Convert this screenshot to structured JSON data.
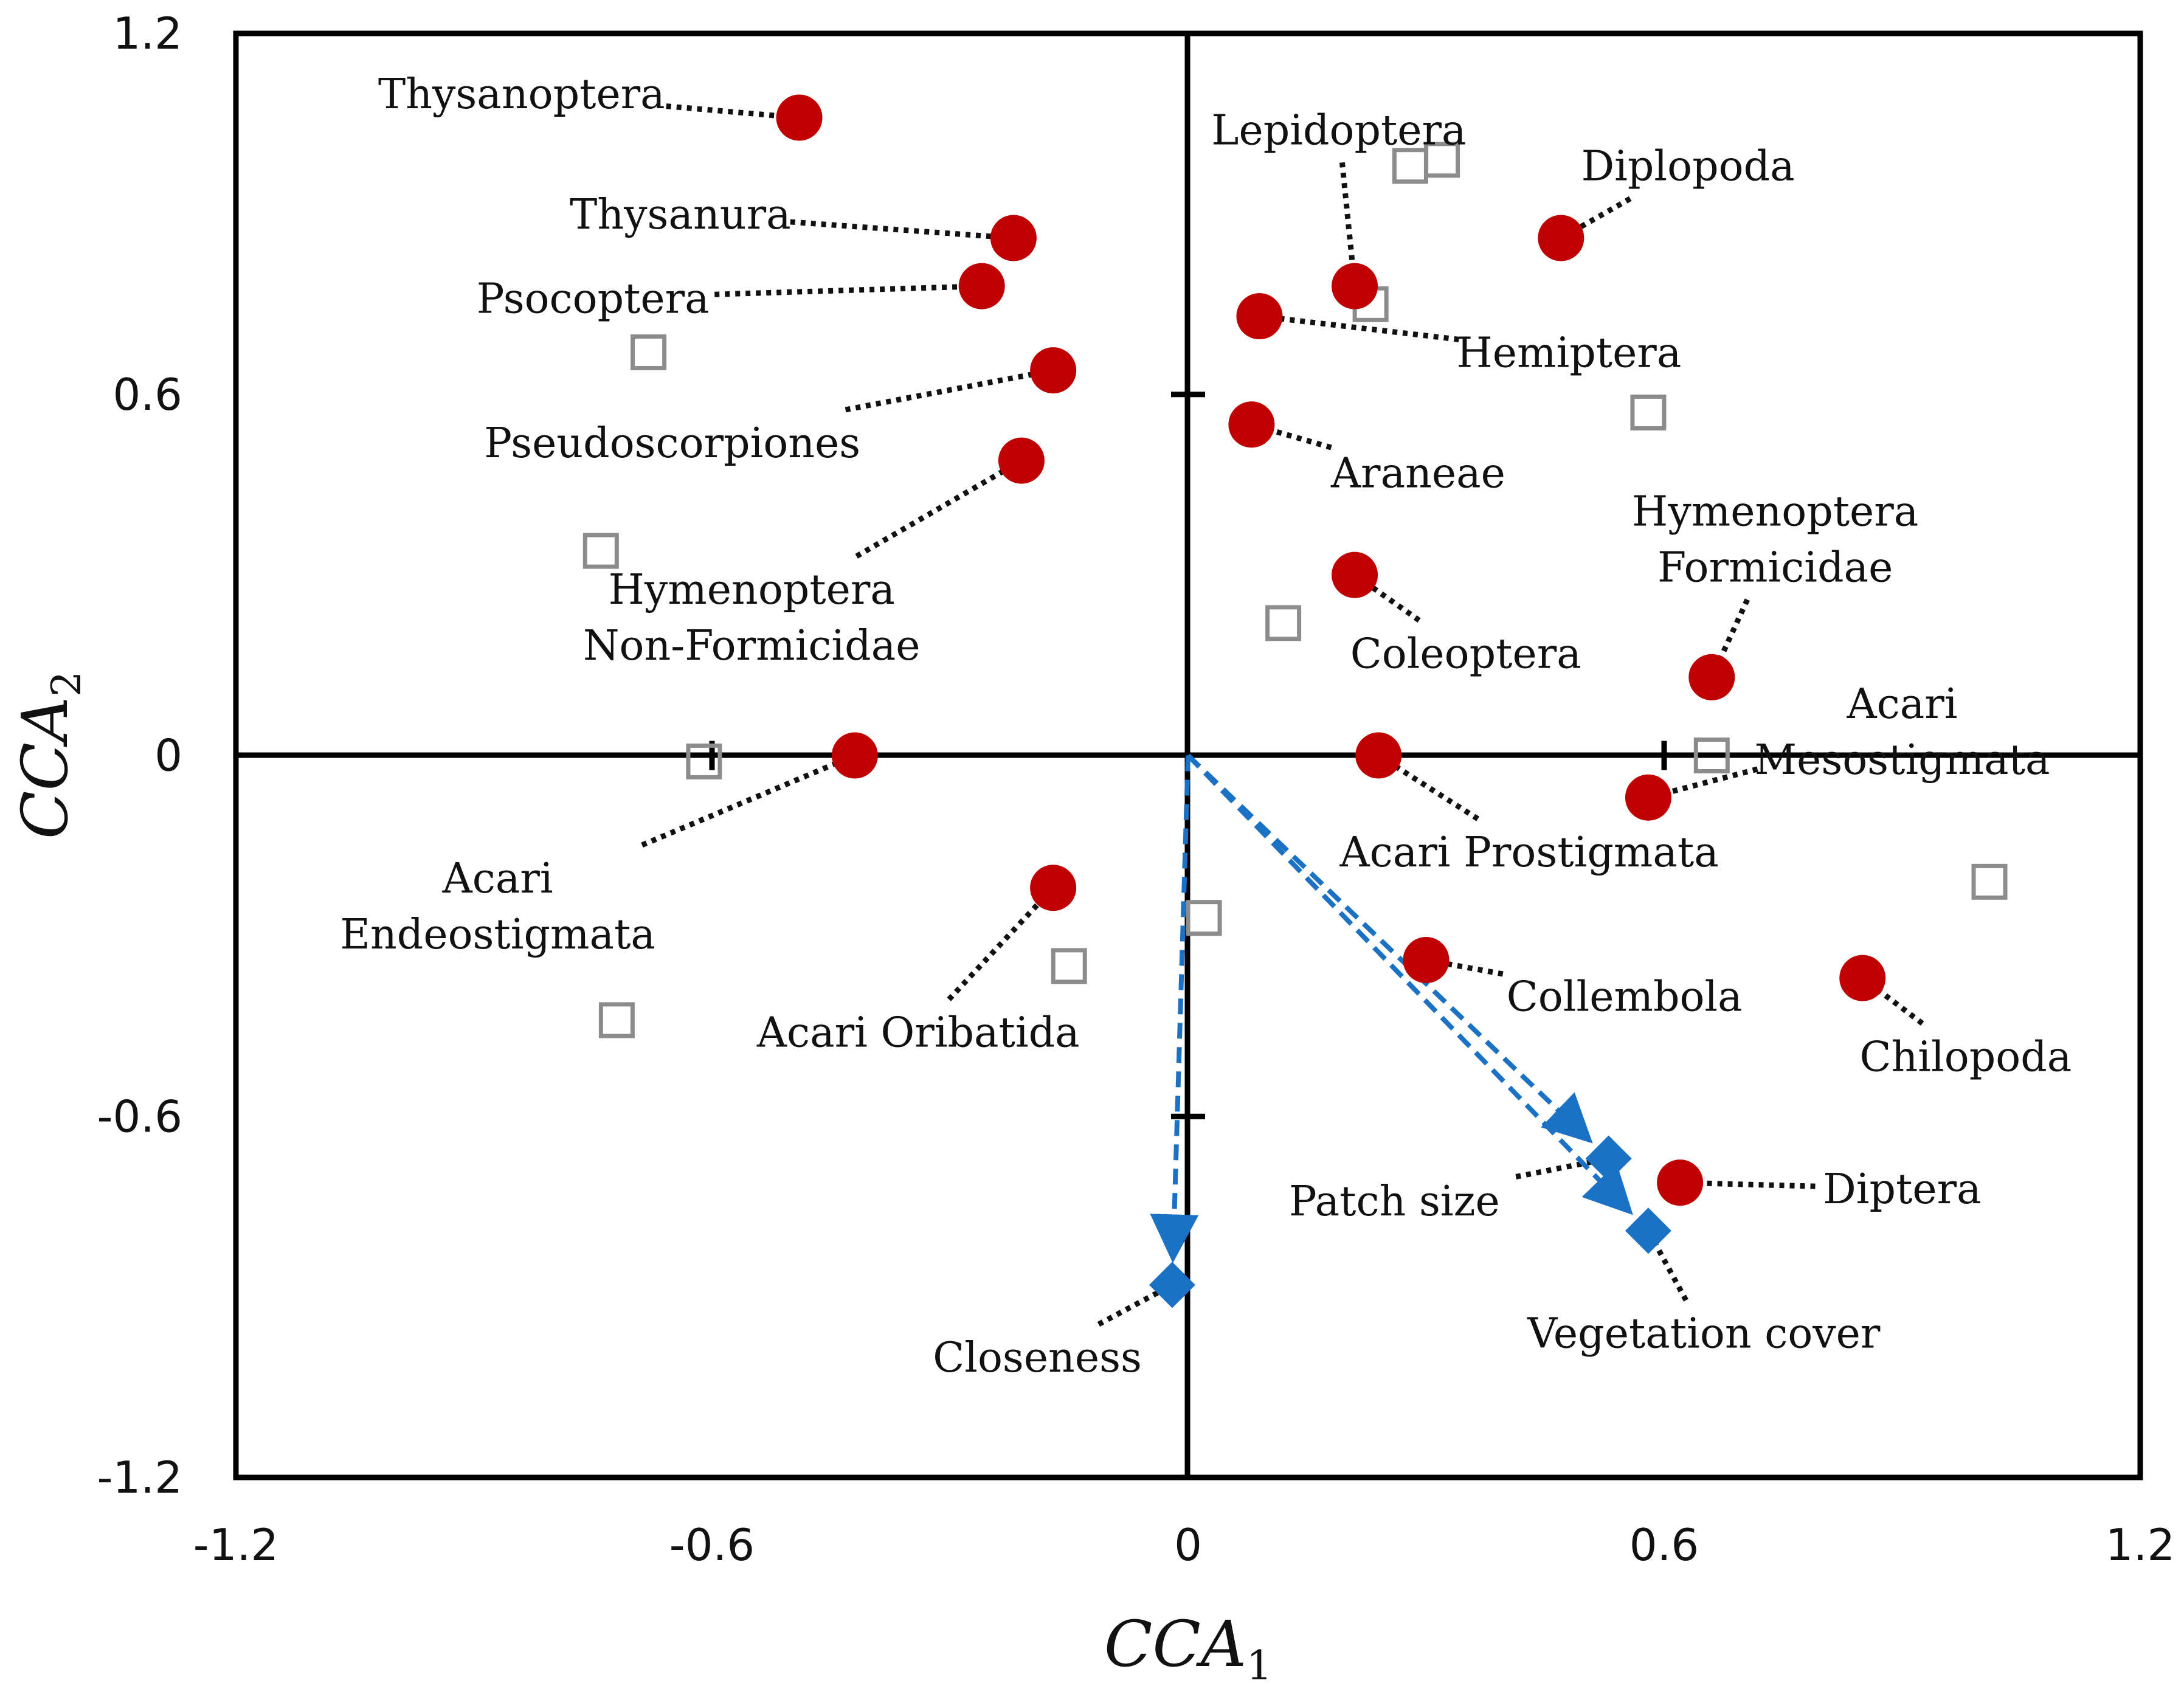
{
  "chart_data": {
    "type": "scatter",
    "title": "",
    "xlabel": {
      "main": "CCA",
      "sub": "1"
    },
    "ylabel": {
      "main": "CCA",
      "sub": "2"
    },
    "xlim": [
      -1.2,
      1.2
    ],
    "ylim": [
      -1.2,
      1.2
    ],
    "x_ticks": [
      "-1.2",
      "-0.6",
      "0",
      "0.6",
      "1.2"
    ],
    "y_ticks": [
      "1.2",
      "0.6",
      "0",
      "-0.6",
      "-1.2"
    ],
    "grid": false,
    "colors": {
      "taxa": "#c00000",
      "sites": "#8c8c8c",
      "variables": "#1b72c4",
      "leader": "#111111",
      "axis": "#000000"
    },
    "taxa": [
      {
        "label": [
          "Thysanoptera"
        ],
        "x": -0.49,
        "y": 1.06,
        "lx": -0.84,
        "ly": 1.1
      },
      {
        "label": [
          "Thysanura"
        ],
        "x": -0.22,
        "y": 0.86,
        "lx": -0.64,
        "ly": 0.9
      },
      {
        "label": [
          "Psocoptera"
        ],
        "x": -0.26,
        "y": 0.78,
        "lx": -0.75,
        "ly": 0.76
      },
      {
        "label": [
          "Pseudoscorpiones"
        ],
        "x": -0.17,
        "y": 0.64,
        "lx": -0.65,
        "ly": 0.52
      },
      {
        "label": [
          "Hymenoptera",
          "Non-Formicidae"
        ],
        "x": -0.21,
        "y": 0.49,
        "lx": -0.55,
        "ly": 0.23
      },
      {
        "label": [
          "Acari",
          "Endeostigmata"
        ],
        "x": -0.42,
        "y": 0.0,
        "lx": -0.87,
        "ly": -0.25
      },
      {
        "label": [
          "Acari Oribatida"
        ],
        "x": -0.17,
        "y": -0.22,
        "lx": -0.34,
        "ly": -0.46
      },
      {
        "label": [
          "Lepidoptera"
        ],
        "x": 0.21,
        "y": 0.78,
        "lx": 0.19,
        "ly": 1.04
      },
      {
        "label": [
          "Diplopoda"
        ],
        "x": 0.47,
        "y": 0.86,
        "lx": 0.63,
        "ly": 0.98
      },
      {
        "label": [
          "Hemiptera"
        ],
        "x": 0.09,
        "y": 0.73,
        "lx": 0.48,
        "ly": 0.67
      },
      {
        "label": [
          "Araneae"
        ],
        "x": 0.08,
        "y": 0.55,
        "lx": 0.29,
        "ly": 0.47
      },
      {
        "label": [
          "Coleoptera"
        ],
        "x": 0.21,
        "y": 0.3,
        "lx": 0.35,
        "ly": 0.17
      },
      {
        "label": [
          "Hymenoptera",
          "Formicidae"
        ],
        "x": 0.66,
        "y": 0.13,
        "lx": 0.74,
        "ly": 0.36
      },
      {
        "label": [
          "Acari Prostigmata"
        ],
        "x": 0.24,
        "y": 0.0,
        "lx": 0.43,
        "ly": -0.16
      },
      {
        "label": [
          "Acari",
          "Mesostigmata"
        ],
        "x": 0.58,
        "y": -0.07,
        "lx": 0.9,
        "ly": 0.04
      },
      {
        "label": [
          "Collembola"
        ],
        "x": 0.3,
        "y": -0.34,
        "lx": 0.55,
        "ly": -0.4
      },
      {
        "label": [
          "Chilopoda"
        ],
        "x": 0.85,
        "y": -0.37,
        "lx": 0.98,
        "ly": -0.5
      },
      {
        "label": [
          "Diptera"
        ],
        "x": 0.62,
        "y": -0.71,
        "lx": 0.9,
        "ly": -0.72
      }
    ],
    "sites": [
      [
        0.28,
        0.98
      ],
      [
        0.32,
        0.99
      ],
      [
        0.23,
        0.75
      ],
      [
        0.58,
        0.57
      ],
      [
        -0.68,
        0.67
      ],
      [
        -0.74,
        0.34
      ],
      [
        0.12,
        0.22
      ],
      [
        0.66,
        0.0
      ],
      [
        -0.61,
        -0.01
      ],
      [
        1.01,
        -0.21
      ],
      [
        0.02,
        -0.27
      ],
      [
        -0.15,
        -0.35
      ],
      [
        -0.72,
        -0.44
      ]
    ],
    "variables": [
      {
        "label": "Patch size",
        "x": 0.53,
        "y": -0.67,
        "lx": 0.26,
        "ly": -0.74
      },
      {
        "label": "Vegetation cover",
        "x": 0.58,
        "y": -0.79,
        "lx": 0.65,
        "ly": -0.96
      },
      {
        "label": "Closeness",
        "x": -0.02,
        "y": -0.88,
        "lx": -0.19,
        "ly": -1.0
      }
    ]
  }
}
